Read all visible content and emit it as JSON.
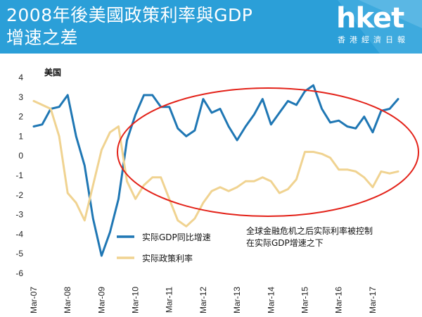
{
  "header": {
    "title": "2008年後美國政策利率與GDP增速之差",
    "logo": "hket",
    "logo_sub": "香港經濟日報"
  },
  "colors": {
    "header_bg": "#2b9fd8",
    "gdp_line": "#1f77b4",
    "rate_line": "#f0d391",
    "highlight_ellipse": "#e32219"
  },
  "chart_data": {
    "type": "line",
    "region_label": "美国",
    "x_tick_labels": [
      "Mar-07",
      "Mar-08",
      "Mar-09",
      "Mar-10",
      "Mar-11",
      "Mar-12",
      "Mar-13",
      "Mar-14",
      "Mar-15",
      "Mar-16",
      "Mar-17"
    ],
    "yticks": [
      4,
      3,
      2,
      1,
      0,
      -1,
      -2,
      -3,
      -4,
      -5,
      -6
    ],
    "ylim": [
      -6,
      4
    ],
    "grid": false,
    "legend_position": "bottom-left",
    "annotation": [
      "全球金融危机之后实际利率被控制",
      "在实际GDP增速之下"
    ],
    "series": [
      {
        "name": "实际GDP同比增速",
        "color": "#1f77b4",
        "x": [
          0,
          1,
          2,
          3,
          4,
          5,
          6,
          7,
          8,
          9,
          10,
          11,
          12,
          13,
          14,
          15,
          16,
          17,
          18,
          19,
          20,
          21,
          22,
          23,
          24,
          25,
          26,
          27,
          28,
          29,
          30,
          31,
          32,
          33,
          34,
          35,
          36,
          37,
          38,
          39,
          40,
          41,
          42,
          43
        ],
        "values": [
          1.5,
          1.6,
          2.4,
          2.5,
          3.1,
          1.0,
          -0.5,
          -3.2,
          -5.1,
          -3.9,
          -2.2,
          0.8,
          2.1,
          3.1,
          3.1,
          2.5,
          2.5,
          1.4,
          1.0,
          1.3,
          2.9,
          2.2,
          2.4,
          1.5,
          0.8,
          1.5,
          2.1,
          2.9,
          1.6,
          2.2,
          2.8,
          2.6,
          3.3,
          3.6,
          2.4,
          1.7,
          1.8,
          1.5,
          1.4,
          2.0,
          1.2,
          2.3,
          2.4,
          2.9
        ]
      },
      {
        "name": "实际政策利率",
        "color": "#f0d391",
        "x": [
          0,
          1,
          2,
          3,
          4,
          5,
          6,
          7,
          8,
          9,
          10,
          11,
          12,
          13,
          14,
          15,
          16,
          17,
          18,
          19,
          20,
          21,
          22,
          23,
          24,
          25,
          26,
          27,
          28,
          29,
          30,
          31,
          32,
          33,
          34,
          35,
          36,
          37,
          38,
          39,
          40,
          41,
          42,
          43
        ],
        "values": [
          2.8,
          2.6,
          2.4,
          1.0,
          -1.9,
          -2.4,
          -3.3,
          -1.5,
          0.3,
          1.2,
          1.5,
          -1.3,
          -2.2,
          -1.5,
          -1.1,
          -1.1,
          -2.2,
          -3.3,
          -3.6,
          -3.2,
          -2.4,
          -1.8,
          -1.6,
          -1.8,
          -1.6,
          -1.3,
          -1.3,
          -1.1,
          -1.3,
          -1.9,
          -1.7,
          -1.2,
          0.2,
          0.2,
          0.1,
          -0.1,
          -0.7,
          -0.7,
          -0.8,
          -1.1,
          -1.6,
          -0.8,
          -0.9,
          -0.8
        ]
      }
    ]
  }
}
